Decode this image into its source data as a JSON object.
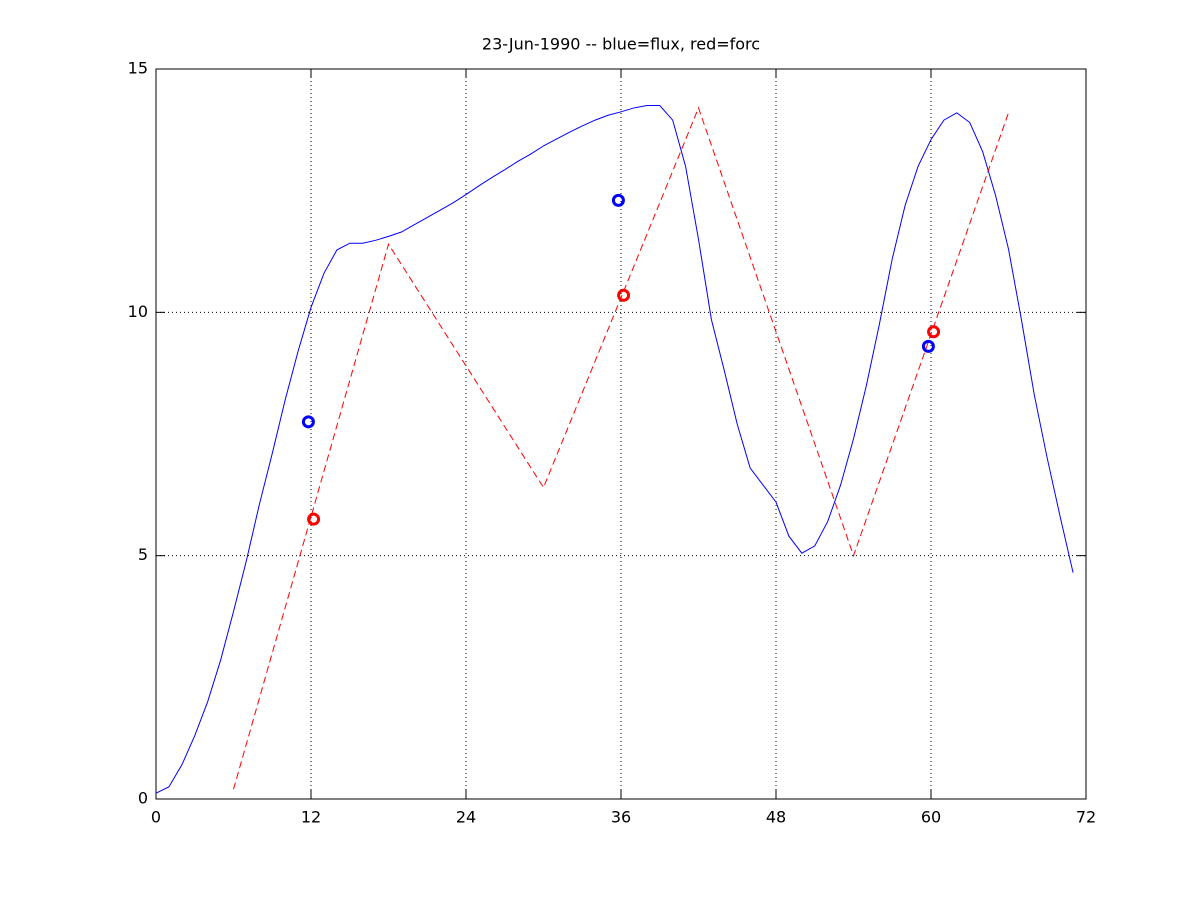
{
  "chart_data": {
    "type": "line",
    "title": "23-Jun-1990 -- blue=flux, red=forc",
    "xlim": [
      0,
      72
    ],
    "xticks": [
      0,
      12,
      24,
      36,
      48,
      60,
      72
    ],
    "ylim": [
      0,
      15
    ],
    "yticks": [
      0,
      5,
      10,
      15
    ],
    "grid": true,
    "series": [
      {
        "color": "#0000ff",
        "style": "solid",
        "x": [
          0,
          1,
          2,
          3,
          4,
          5,
          6,
          7,
          8,
          9,
          10,
          11,
          12,
          13,
          14,
          15,
          16,
          17,
          18,
          19,
          20,
          21,
          22,
          23,
          24,
          25,
          26,
          27,
          28,
          29,
          30,
          31,
          32,
          33,
          34,
          35,
          36,
          37,
          38,
          39,
          40,
          41,
          42,
          43,
          44,
          45,
          46,
          47,
          48,
          49,
          50,
          51,
          52,
          53,
          54,
          55,
          56,
          57,
          58,
          59,
          60,
          61,
          62,
          63,
          64,
          65,
          66,
          67,
          68,
          69,
          70,
          71
        ],
        "values": [
          0.12,
          0.25,
          0.7,
          1.3,
          2.0,
          2.85,
          3.85,
          4.9,
          6.05,
          7.1,
          8.2,
          9.2,
          10.1,
          10.8,
          11.28,
          11.42,
          11.42,
          11.48,
          11.56,
          11.65,
          11.8,
          11.95,
          12.1,
          12.25,
          12.42,
          12.6,
          12.77,
          12.93,
          13.1,
          13.25,
          13.42,
          13.56,
          13.7,
          13.83,
          13.95,
          14.05,
          14.12,
          14.2,
          14.25,
          14.25,
          13.95,
          13.0,
          11.5,
          9.85,
          8.8,
          7.7,
          6.8,
          6.45,
          6.1,
          5.4,
          5.05,
          5.2,
          5.7,
          6.45,
          7.4,
          8.5,
          9.75,
          11.1,
          12.2,
          13.0,
          13.55,
          13.95,
          14.1,
          13.9,
          13.3,
          12.4,
          11.3,
          9.85,
          8.3,
          7.0,
          5.8,
          4.65
        ]
      },
      {
        "color": "#ff0000",
        "style": "dashed",
        "x": [
          6,
          18,
          30,
          42,
          54,
          66
        ],
        "values": [
          0.2,
          11.4,
          6.4,
          14.2,
          5.0,
          14.1
        ]
      },
      {
        "color": "#0000ff",
        "style": "marker",
        "x": [
          11.8,
          35.8,
          59.8
        ],
        "values": [
          7.75,
          12.3,
          9.3
        ]
      },
      {
        "color": "#ff0000",
        "style": "marker",
        "x": [
          12.2,
          36.2,
          60.2
        ],
        "values": [
          5.75,
          10.35,
          9.6
        ]
      }
    ]
  }
}
